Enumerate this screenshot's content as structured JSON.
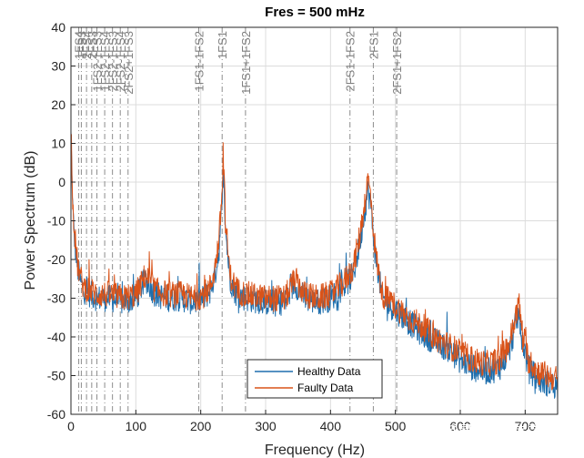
{
  "chart_data": {
    "type": "line",
    "title": "Fres = 500 mHz",
    "xlabel": "Frequency (Hz)",
    "ylabel": "Power Spectrum (dB)",
    "xlim": [
      0,
      750
    ],
    "ylim": [
      -60,
      40
    ],
    "xticks": [
      0,
      100,
      200,
      300,
      400,
      500,
      600,
      700
    ],
    "yticks": [
      -60,
      -50,
      -40,
      -30,
      -20,
      -10,
      0,
      10,
      20,
      30,
      40
    ],
    "grid": true,
    "legend": "bottom-center",
    "markers": [
      {
        "label": "1FS4",
        "x": 12
      },
      {
        "label": "1FS3",
        "x": 16
      },
      {
        "label": "2FS4",
        "x": 24
      },
      {
        "label": "2FS3",
        "x": 32
      },
      {
        "label": "1FS2-1FS3",
        "x": 40
      },
      {
        "label": "1FS2-1FS4",
        "x": 52
      },
      {
        "label": "2FS2-1FS3",
        "x": 64
      },
      {
        "label": "2FS2-1FS4",
        "x": 76
      },
      {
        "label": "2FS2+1FS3",
        "x": 88
      },
      {
        "label": "1FS1-1FS2",
        "x": 197
      },
      {
        "label": "1FS1",
        "x": 233
      },
      {
        "label": "1FS1+1FS2",
        "x": 269
      },
      {
        "label": "2FS1-1FS2",
        "x": 430
      },
      {
        "label": "2FS1",
        "x": 466
      },
      {
        "label": "2FS1+1FS2",
        "x": 502
      }
    ],
    "series": [
      {
        "name": "Healthy Data",
        "color": "#1f6fad",
        "x": [
          0,
          3,
          6,
          10,
          15,
          20,
          30,
          40,
          60,
          80,
          100,
          115,
          130,
          150,
          170,
          190,
          205,
          215,
          222,
          228,
          232,
          235,
          238,
          245,
          255,
          270,
          300,
          330,
          345,
          360,
          380,
          400,
          420,
          435,
          445,
          452,
          458,
          462,
          466,
          470,
          480,
          500,
          520,
          540,
          560,
          580,
          600,
          620,
          640,
          660,
          675,
          685,
          690,
          695,
          705,
          720,
          735,
          750
        ],
        "values": [
          12,
          -8,
          -16,
          -22,
          -26,
          -28,
          -29,
          -30,
          -30,
          -31,
          -30,
          -25,
          -29,
          -30,
          -30,
          -31,
          -30,
          -28,
          -24,
          -18,
          -8,
          2,
          -12,
          -25,
          -29,
          -30,
          -31,
          -31,
          -26,
          -30,
          -31,
          -30,
          -27,
          -24,
          -16,
          -8,
          -2,
          -6,
          -14,
          -20,
          -30,
          -33,
          -36,
          -39,
          -41,
          -43,
          -46,
          -48,
          -49,
          -48,
          -44,
          -37,
          -34,
          -40,
          -48,
          -51,
          -52,
          -53
        ]
      },
      {
        "name": "Faulty Data",
        "color": "#d95319",
        "x": [
          0,
          3,
          6,
          10,
          15,
          20,
          30,
          40,
          60,
          80,
          100,
          115,
          130,
          150,
          170,
          190,
          205,
          215,
          222,
          228,
          232,
          235,
          238,
          245,
          255,
          270,
          300,
          330,
          345,
          360,
          380,
          400,
          420,
          435,
          445,
          452,
          458,
          462,
          466,
          470,
          480,
          500,
          520,
          540,
          560,
          580,
          600,
          620,
          640,
          660,
          675,
          685,
          690,
          695,
          705,
          720,
          735,
          750
        ],
        "values": [
          15,
          -6,
          -14,
          -21,
          -25,
          -27,
          -28,
          -29,
          -29,
          -30,
          -29,
          -24,
          -28,
          -29,
          -29,
          -30,
          -29,
          -27,
          -22,
          -15,
          -5,
          6,
          -10,
          -24,
          -28,
          -29,
          -30,
          -30,
          -25,
          -29,
          -30,
          -29,
          -26,
          -22,
          -14,
          -6,
          1,
          -4,
          -12,
          -19,
          -29,
          -32,
          -35,
          -37,
          -40,
          -42,
          -44,
          -46,
          -47,
          -46,
          -42,
          -35,
          -31,
          -38,
          -46,
          -49,
          -50,
          -51
        ]
      }
    ]
  },
  "watermark": "知乎 @哥廷根数学学派"
}
